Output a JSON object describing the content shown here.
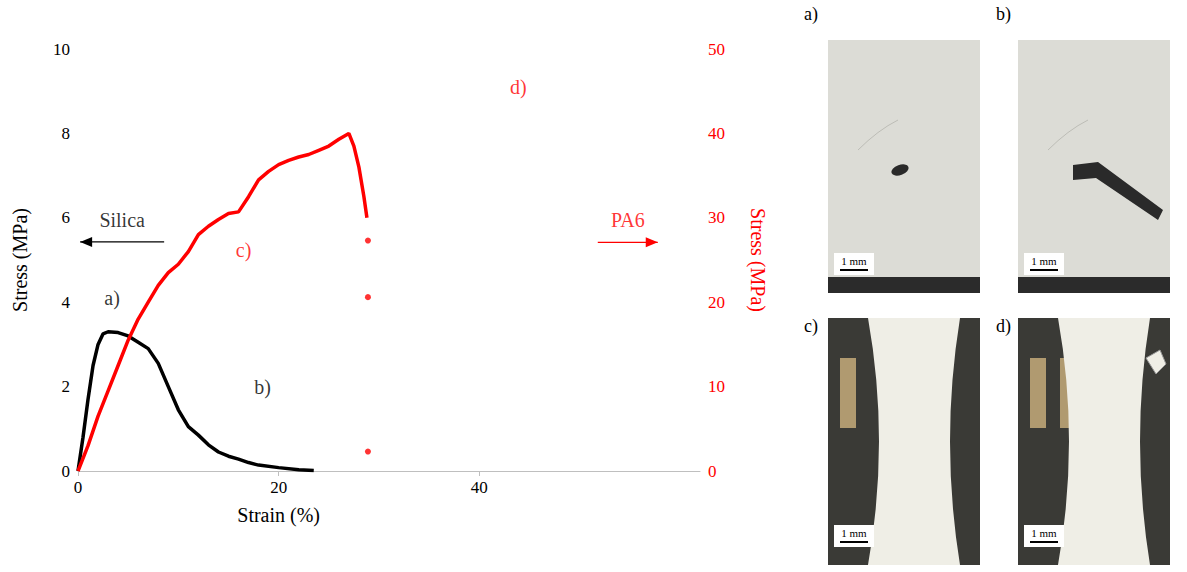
{
  "chart_data": {
    "type": "line",
    "x_label": "Strain (%)",
    "y_label": "Stress (MPa)",
    "y2_label": "Stress (MPa)",
    "xlim": [
      0,
      62
    ],
    "xticks": [
      0,
      20,
      40
    ],
    "ylim": [
      0,
      10
    ],
    "yticks": [
      0,
      2,
      4,
      6,
      8,
      10
    ],
    "y2lim": [
      0,
      50
    ],
    "y2ticks": [
      0,
      10,
      20,
      30,
      40,
      50
    ],
    "grid": false,
    "series": [
      {
        "name": "Silica",
        "color": "#000000",
        "axis": "y",
        "x": [
          0,
          0.5,
          1,
          1.5,
          2,
          2.5,
          3,
          4,
          5,
          6,
          7,
          8,
          9,
          10,
          11,
          12,
          13,
          14,
          15,
          16,
          17,
          18,
          20,
          22,
          23.5
        ],
        "values": [
          0,
          0.8,
          1.7,
          2.5,
          3.0,
          3.25,
          3.3,
          3.28,
          3.2,
          3.05,
          2.9,
          2.55,
          2.0,
          1.45,
          1.05,
          0.85,
          0.62,
          0.45,
          0.35,
          0.28,
          0.2,
          0.14,
          0.08,
          0.03,
          0.01
        ]
      },
      {
        "name": "PA6",
        "color": "#ff0000",
        "axis": "y2",
        "x": [
          0,
          1,
          2,
          3,
          4,
          5,
          6,
          7,
          8,
          9,
          10,
          11,
          12,
          13,
          14,
          15,
          16,
          17,
          18,
          19,
          20,
          21,
          22,
          23,
          24,
          25,
          26,
          27,
          27.5,
          28,
          28.5,
          28.8
        ],
        "values": [
          0,
          3,
          6.5,
          9.5,
          12.5,
          15.5,
          18,
          20,
          22,
          23.5,
          24.5,
          26,
          28,
          29,
          29.8,
          30.5,
          30.7,
          32.5,
          34.5,
          35.5,
          36.3,
          36.8,
          37.2,
          37.5,
          38,
          38.5,
          39.3,
          40,
          38.5,
          36,
          32.5,
          30
        ],
        "points": {
          "x": [
            28.9,
            28.9,
            28.9
          ],
          "values": [
            27.3,
            20.6,
            2.3
          ]
        }
      }
    ],
    "annotations": [
      {
        "text": "a)",
        "x": 3.4,
        "y": 4.1,
        "axis": "y",
        "color": "#000000"
      },
      {
        "text": "b)",
        "x": 18.4,
        "y": 2.0,
        "axis": "y",
        "color": "#000000"
      },
      {
        "text": "c)",
        "x": 16.5,
        "y": 26.2,
        "axis": "y2",
        "color": "#ff0000"
      },
      {
        "text": "d)",
        "x": 43.9,
        "y": 45.5,
        "axis": "y2",
        "color": "#ff0000"
      },
      {
        "text": "Silica",
        "x": 4.4,
        "y": 5.95,
        "axis": "y",
        "color": "#000000"
      },
      {
        "text": "PA6",
        "x": 54.8,
        "y": 29.7,
        "axis": "y2",
        "color": "#ff0000"
      }
    ]
  },
  "image_panels": [
    {
      "label": "a)",
      "scale_bar": "1 mm"
    },
    {
      "label": "b)",
      "scale_bar": "1 mm"
    },
    {
      "label": "c)",
      "scale_bar": "1 mm"
    },
    {
      "label": "d)",
      "scale_bar": "1 mm"
    }
  ]
}
